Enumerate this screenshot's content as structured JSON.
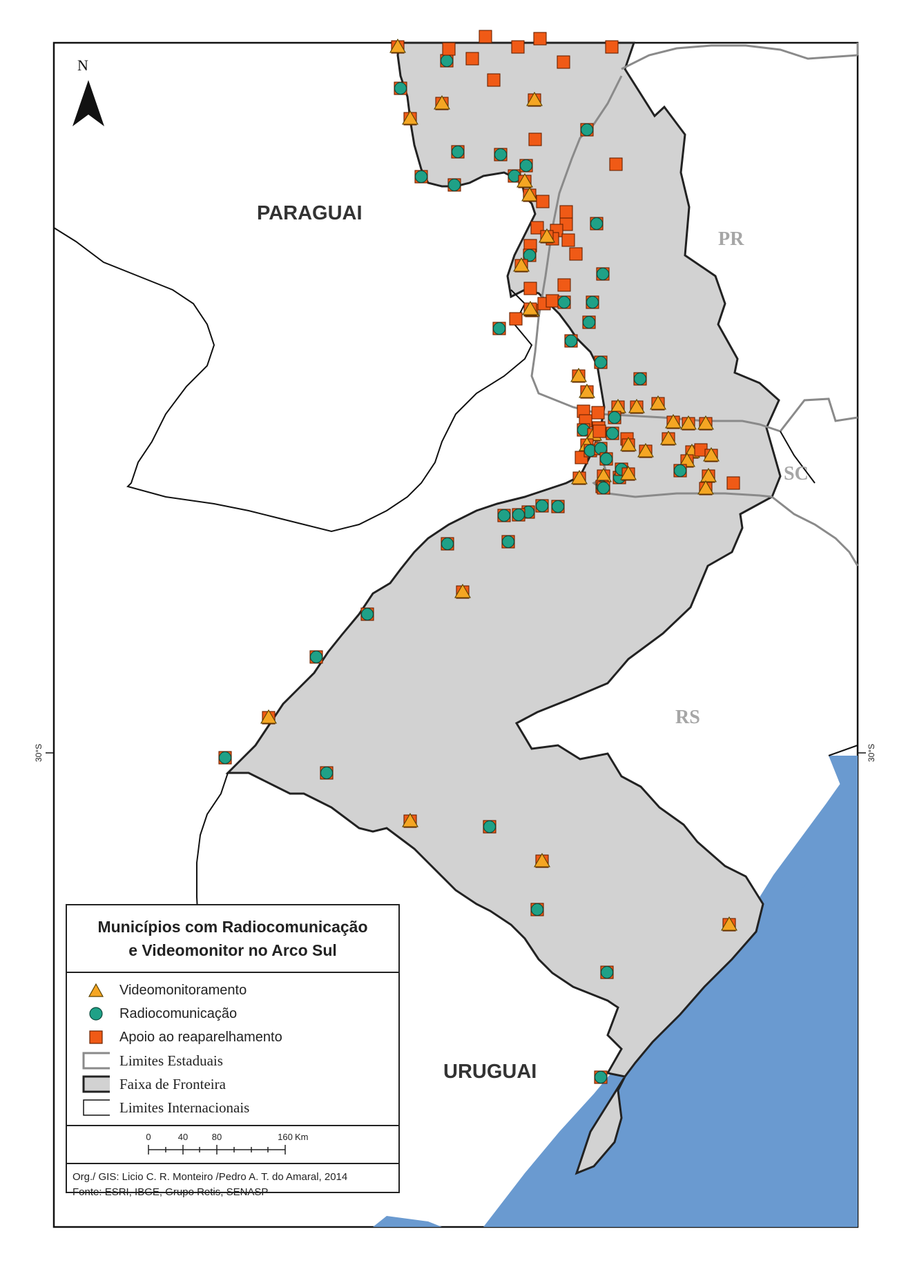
{
  "map": {
    "north": "N",
    "countries": {
      "paraguai": "PARAGUAI",
      "uruguai": "URUGUAI"
    },
    "states": {
      "pr": "PR",
      "sc": "SC",
      "rs": "RS"
    },
    "graticule_left": "30°S",
    "graticule_right": "30°S",
    "colors": {
      "frontier_fill": "#d2d2d2",
      "ocean": "#6a9ad0",
      "triangle": "#f5a623",
      "circle": "#1fa187",
      "square": "#f05a16",
      "state_line": "#8a8a8a",
      "border_line": "#222222"
    }
  },
  "legend": {
    "title_line1": "Municípios com Radiocomunicação",
    "title_line2": "e Videomonitor no Arco Sul",
    "items": [
      {
        "icon": "triangle-icon",
        "label": "Videomonitoramento"
      },
      {
        "icon": "circle-icon",
        "label": "Radiocomunicação"
      },
      {
        "icon": "square-icon",
        "label": "Apoio ao reaparelhamento"
      },
      {
        "icon": "state-limit-swatch",
        "label": "Limites Estaduais"
      },
      {
        "icon": "frontier-swatch",
        "label": "Faixa de Fronteira"
      },
      {
        "icon": "international-swatch",
        "label": "Limites Internacionais"
      }
    ],
    "scale": {
      "ticks": [
        "0",
        "40",
        "80",
        "160"
      ],
      "unit": "Km"
    },
    "credits_line1": "Org./ GIS: Licio C. R. Monteiro /Pedro A. T. do Amaral, 2014",
    "credits_line2": "Fonte: ESRI, IBGE, Grupo Retis, SENASP"
  }
}
